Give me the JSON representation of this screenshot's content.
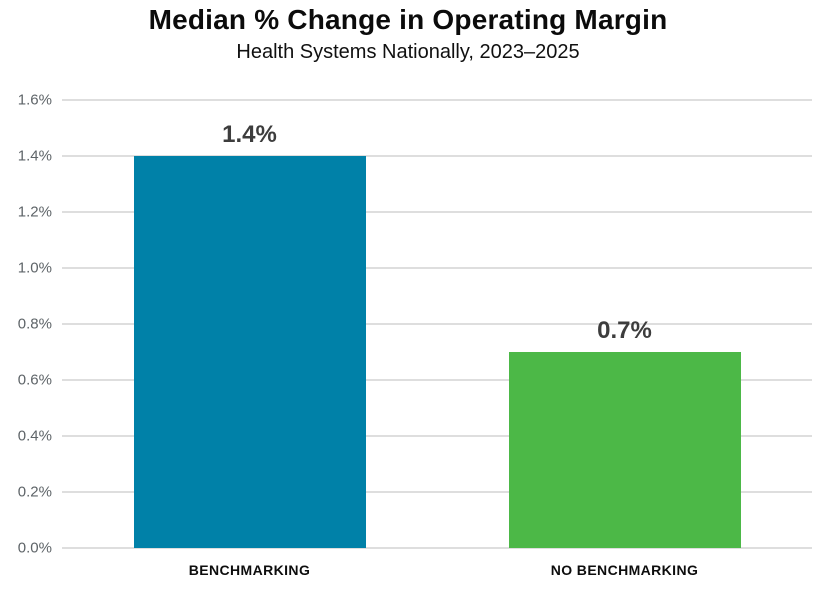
{
  "header": {
    "title": "Median % Change in Operating Margin",
    "subtitle": "Health Systems Nationally, 2023–2025"
  },
  "chart_data": {
    "type": "bar",
    "title": "Median % Change in Operating Margin",
    "subtitle": "Health Systems Nationally, 2023–2025",
    "categories": [
      "BENCHMARKING",
      "NO BENCHMARKING"
    ],
    "values": [
      1.4,
      0.7
    ],
    "value_labels": [
      "1.4%",
      "0.7%"
    ],
    "bar_colors": [
      "#0081A8",
      "#4CB847"
    ],
    "xlabel": "",
    "ylabel": "",
    "ylim": [
      0,
      1.6
    ],
    "yticks": [
      {
        "value": 0.0,
        "label": "0.0%"
      },
      {
        "value": 0.2,
        "label": "0.2%"
      },
      {
        "value": 0.4,
        "label": "0.4%"
      },
      {
        "value": 0.6,
        "label": "0.6%"
      },
      {
        "value": 0.8,
        "label": "0.8%"
      },
      {
        "value": 1.0,
        "label": "1.0%"
      },
      {
        "value": 1.2,
        "label": "1.2%"
      },
      {
        "value": 1.4,
        "label": "1.4%"
      },
      {
        "value": 1.6,
        "label": "1.6%"
      }
    ],
    "grid": true,
    "legend": "none",
    "colors": {
      "background": "#ffffff",
      "gridline": "#dedede",
      "title_text": "#0b0b0b",
      "subtitle_text": "#101010",
      "y_tick_text": "#5e6468",
      "value_label_text": "#3d3d3d",
      "x_tick_text": "#0d0d0d"
    }
  }
}
